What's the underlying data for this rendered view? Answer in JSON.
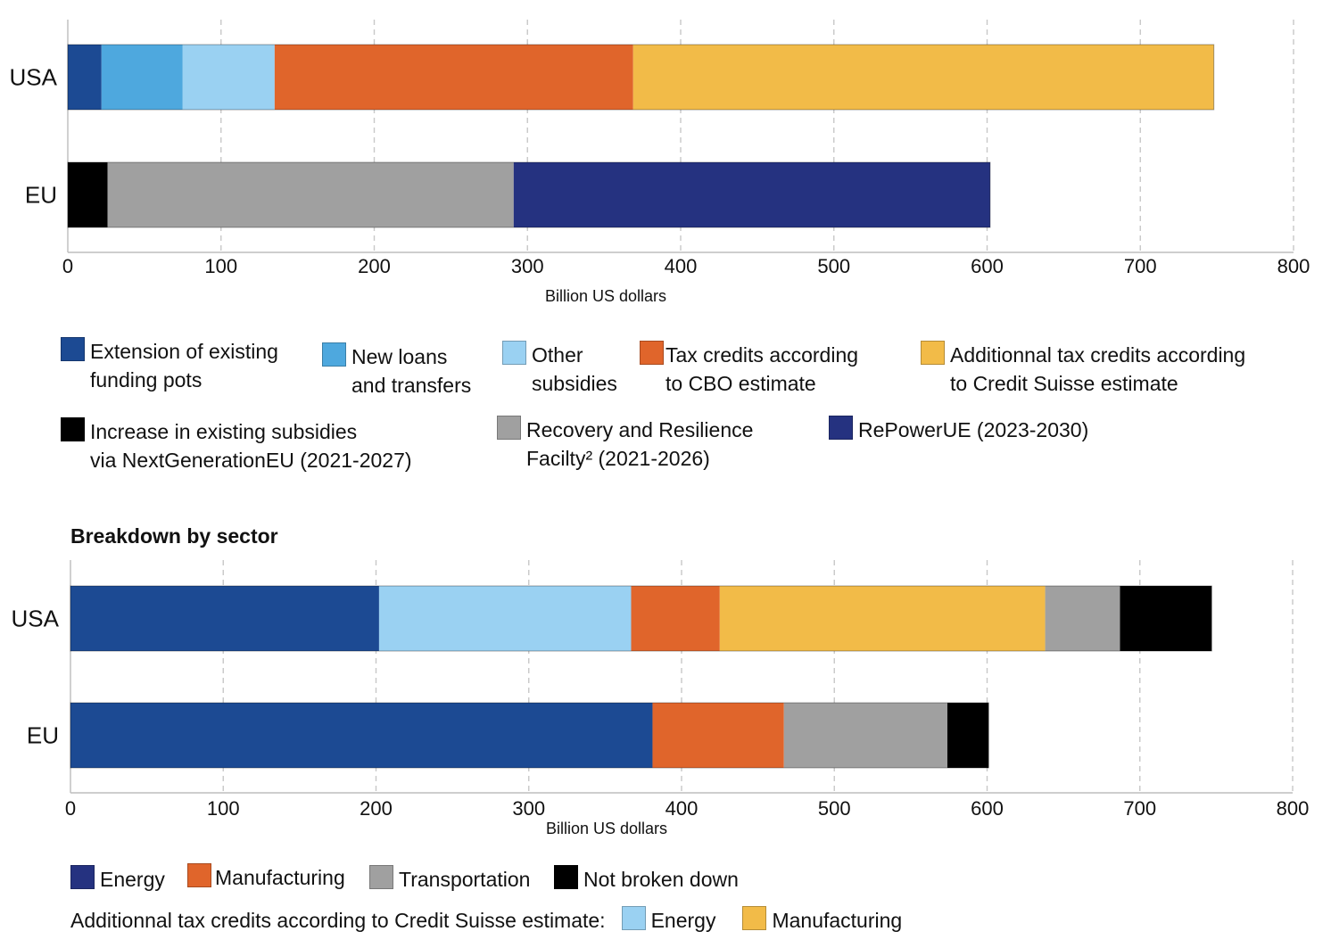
{
  "chart_data": [
    {
      "type": "bar",
      "orientation": "horizontal",
      "stacked": true,
      "title": "",
      "categories": [
        "USA",
        "EU"
      ],
      "xlabel": "Billion US dollars",
      "ylabel": "",
      "xlim": [
        0,
        800
      ],
      "xticks": [
        "0",
        "100",
        "200",
        "300",
        "400",
        "500",
        "600",
        "700",
        "800"
      ],
      "grid": "vertical dashed",
      "series": [
        {
          "name": "Extension of existing\nfunding pots",
          "color": "#1c4a93",
          "values": [
            22,
            0
          ]
        },
        {
          "name": "New loans\nand transfers",
          "color": "#4ea8de",
          "values": [
            53,
            0
          ]
        },
        {
          "name": "Other\nsubsidies",
          "color": "#9ad1f2",
          "values": [
            60,
            0
          ]
        },
        {
          "name": "Tax credits according\nto CBO estimate",
          "color": "#e0652b",
          "values": [
            234,
            0
          ]
        },
        {
          "name": "Additionnal tax credits according\nto Credit Suisse estimate",
          "color": "#f2bb48",
          "values": [
            379,
            0
          ]
        },
        {
          "name": "Increase in existing subsidies\nvia NextGenerationEU (2021-2027)",
          "color": "#000000",
          "values": [
            0,
            26
          ]
        },
        {
          "name": "Recovery and Resilience\nFacilty² (2021-2026)",
          "color": "#a0a0a0",
          "values": [
            0,
            265
          ]
        },
        {
          "name": "RePowerUE (2023-2030)",
          "color": "#253280",
          "values": [
            0,
            311
          ]
        }
      ]
    },
    {
      "type": "bar",
      "orientation": "horizontal",
      "stacked": true,
      "title": "Breakdown by sector",
      "categories": [
        "USA",
        "EU"
      ],
      "xlabel": "Billion US dollars",
      "ylabel": "",
      "xlim": [
        0,
        800
      ],
      "xticks": [
        "0",
        "100",
        "200",
        "300",
        "400",
        "500",
        "600",
        "700",
        "800"
      ],
      "grid": "vertical dashed",
      "series": [
        {
          "name": "Energy",
          "color": "#1c4a93",
          "values": [
            202,
            381
          ]
        },
        {
          "name": "Additionnal tax credits according to Credit Suisse estimate: Energy",
          "color": "#9ad1f2",
          "values": [
            165,
            0
          ]
        },
        {
          "name": "Manufacturing",
          "color": "#e0652b",
          "values": [
            58,
            86
          ]
        },
        {
          "name": "Additionnal tax credits according to Credit Suisse estimate: Manufacturing",
          "color": "#f2bb48",
          "values": [
            213,
            0
          ]
        },
        {
          "name": "Transportation",
          "color": "#a0a0a0",
          "values": [
            49,
            107
          ]
        },
        {
          "name": "Not broken down",
          "color": "#000000",
          "values": [
            60,
            27
          ]
        }
      ]
    }
  ],
  "legend1": [
    {
      "label": "Extension of existing\n funding pots",
      "color": "#1c4a93"
    },
    {
      "label": "New loans\nand transfers",
      "color": "#4ea8de"
    },
    {
      "label": "Other\nsubsidies",
      "color": "#9ad1f2"
    },
    {
      "label": "Tax credits according\nto CBO estimate",
      "color": "#e0652b"
    },
    {
      "label": "Additionnal tax credits according\nto Credit Suisse estimate",
      "color": "#f2bb48"
    },
    {
      "label": "Increase in existing subsidies\nvia NextGenerationEU (2021-2027)",
      "color": "#000000"
    },
    {
      "label": "Recovery and Resilience\nFacilty² (2021-2026)",
      "color": "#a0a0a0"
    },
    {
      "label": "RePowerUE (2023-2030)",
      "color": "#253280"
    }
  ],
  "section2_title": "Breakdown by sector",
  "legend2": [
    {
      "label": "Energy",
      "color": "#253280"
    },
    {
      "label": "Manufacturing",
      "color": "#e0652b"
    },
    {
      "label": "Transportation",
      "color": "#a0a0a0"
    },
    {
      "label": "Not broken down",
      "color": "#000000"
    }
  ],
  "legend2_note": {
    "text": "Additionnal tax credits according to Credit Suisse estimate:",
    "items": [
      {
        "label": "Energy",
        "color": "#9ad1f2"
      },
      {
        "label": "Manufacturing",
        "color": "#f2bb48"
      }
    ]
  }
}
